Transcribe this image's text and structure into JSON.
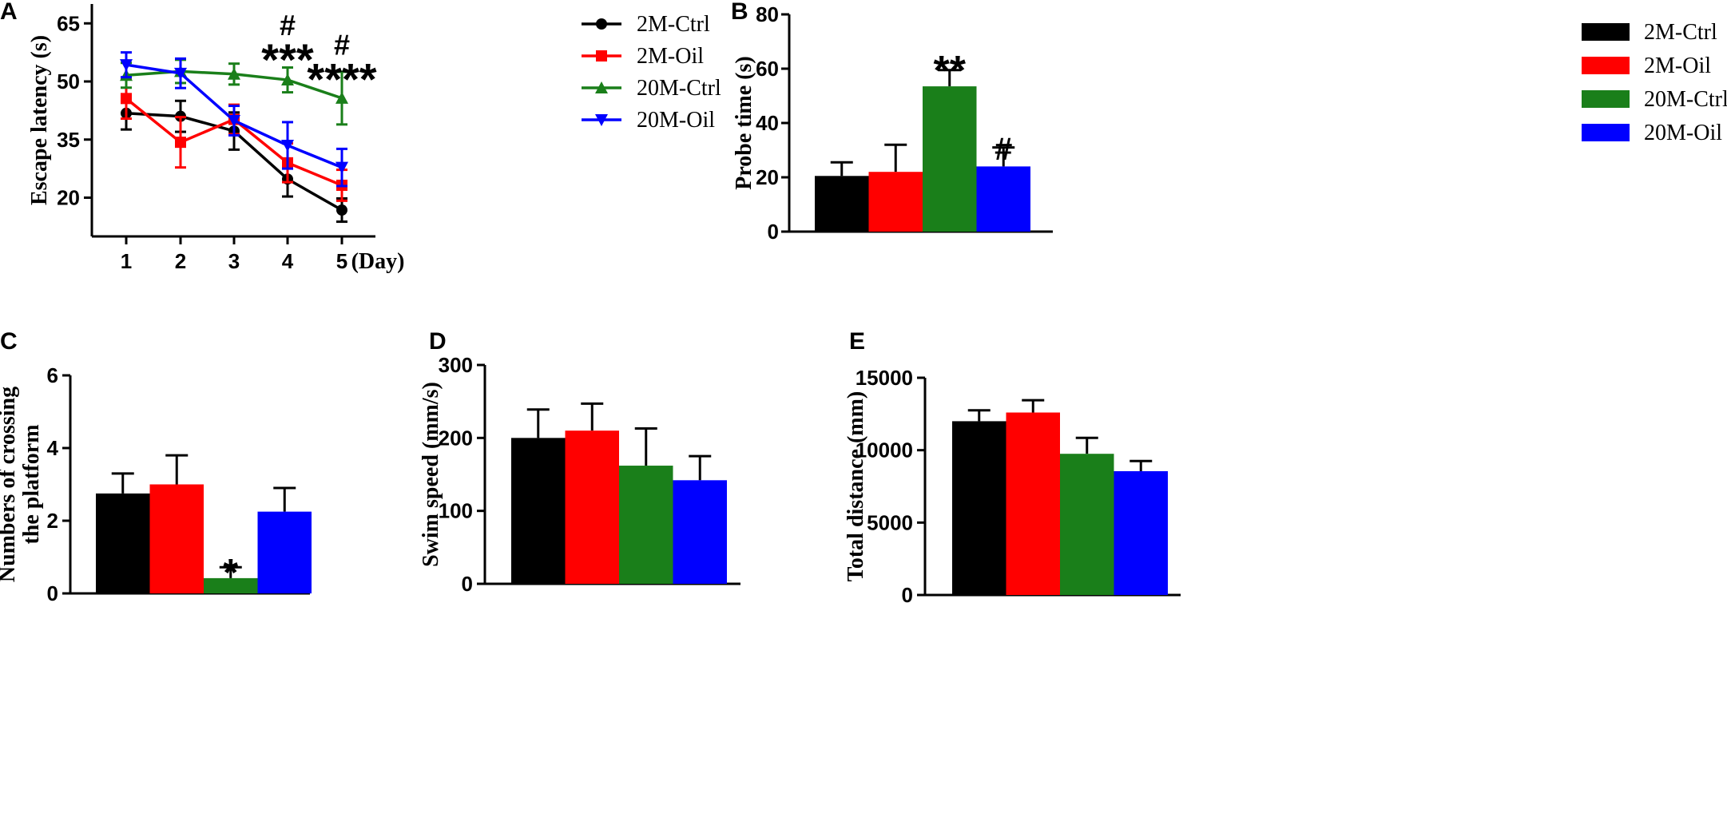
{
  "colors": {
    "2M-Ctrl": "#000000",
    "2M-Oil": "#ff0000",
    "20M-Ctrl": "#1a7f1a",
    "20M-Oil": "#0000ff"
  },
  "chart_data": [
    {
      "panel": "A",
      "type": "line",
      "title": "",
      "xlabel": "(Day)",
      "ylabel": "Escape latency (s)",
      "x": [
        1,
        2,
        3,
        4,
        5
      ],
      "xticks": [
        "1",
        "2",
        "3",
        "4",
        "5"
      ],
      "yticks": [
        20,
        35,
        50,
        65
      ],
      "ylim": [
        10,
        70
      ],
      "series": [
        {
          "name": "2M-Ctrl",
          "marker": "circle",
          "values": [
            41.8,
            41.0,
            37.2,
            24.8,
            16.8
          ],
          "errors": [
            4.2,
            4.0,
            4.8,
            4.5,
            3.0
          ]
        },
        {
          "name": "2M-Oil",
          "marker": "square",
          "values": [
            45.6,
            34.3,
            40.2,
            29.0,
            23.2
          ],
          "errors": [
            5.2,
            6.5,
            3.8,
            5.0,
            4.0
          ]
        },
        {
          "name": "20M-Ctrl",
          "marker": "triangle-up",
          "values": [
            51.6,
            52.6,
            51.9,
            50.4,
            45.7
          ],
          "errors": [
            3.2,
            3.0,
            2.7,
            3.2,
            6.8
          ]
        },
        {
          "name": "20M-Oil",
          "marker": "triangle-down",
          "values": [
            54.3,
            52.1,
            39.9,
            33.5,
            27.8
          ],
          "errors": [
            3.2,
            3.8,
            3.8,
            6.0,
            4.8
          ]
        }
      ],
      "annotations": [
        {
          "text": "#",
          "x": 4,
          "y": 66,
          "size": 36
        },
        {
          "text": "***",
          "x": 4,
          "y": 58,
          "size": 56
        },
        {
          "text": "#",
          "x": 5,
          "y": 61,
          "size": 36
        },
        {
          "text": "****",
          "x": 5,
          "y": 53,
          "size": 56
        }
      ]
    },
    {
      "panel": "B",
      "type": "bar",
      "title": "",
      "xlabel": "",
      "ylabel": "Probe time (s)",
      "categories": [
        "2M-Ctrl",
        "2M-Oil",
        "20M-Ctrl",
        "20M-Oil"
      ],
      "values": [
        20.5,
        22.0,
        53.5,
        24.0
      ],
      "errors": [
        5.0,
        10.0,
        6.0,
        7.0
      ],
      "yticks": [
        0,
        20,
        40,
        60,
        80
      ],
      "ylim": [
        0,
        80
      ],
      "annotations": [
        {
          "text": "**",
          "category": "20M-Ctrl",
          "y": 62.5,
          "size": 52
        },
        {
          "text": "#",
          "category": "20M-Oil",
          "y": 33,
          "size": 40
        }
      ]
    },
    {
      "panel": "C",
      "type": "bar",
      "title": "",
      "xlabel": "",
      "ylabel": [
        "Numbers of crossing",
        "the platform"
      ],
      "categories": [
        "2M-Ctrl",
        "2M-Oil",
        "20M-Ctrl",
        "20M-Oil"
      ],
      "values": [
        2.75,
        3.0,
        0.42,
        2.25
      ],
      "errors": [
        0.55,
        0.8,
        0.3,
        0.65
      ],
      "yticks": [
        0,
        2,
        4,
        6
      ],
      "ylim": [
        0,
        6
      ],
      "annotations": [
        {
          "text": "*",
          "category": "20M-Ctrl",
          "y": 0.8,
          "size": 48
        }
      ]
    },
    {
      "panel": "D",
      "type": "bar",
      "title": "",
      "xlabel": "",
      "ylabel": "Swim speed (mm/s)",
      "categories": [
        "2M-Ctrl",
        "2M-Oil",
        "20M-Ctrl",
        "20M-Oil"
      ],
      "values": [
        200,
        210,
        162,
        142
      ],
      "errors": [
        39,
        37,
        51,
        33
      ],
      "yticks": [
        0,
        100,
        200,
        300
      ],
      "ylim": [
        0,
        300
      ],
      "annotations": []
    },
    {
      "panel": "E",
      "type": "bar",
      "title": "",
      "xlabel": "",
      "ylabel": "Total distance (mm)",
      "categories": [
        "2M-Ctrl",
        "2M-Oil",
        "20M-Ctrl",
        "20M-Oil"
      ],
      "values": [
        12000,
        12600,
        9750,
        8550
      ],
      "errors": [
        750,
        850,
        1100,
        700
      ],
      "yticks": [
        0,
        5000,
        10000,
        15000
      ],
      "ylim": [
        0,
        15000
      ],
      "annotations": []
    }
  ],
  "legends": {
    "A": [
      "2M-Ctrl",
      "2M-Oil",
      "20M-Ctrl",
      "20M-Oil"
    ],
    "B": [
      "2M-Ctrl",
      "2M-Oil",
      "20M-Ctrl",
      "20M-Oil"
    ]
  }
}
